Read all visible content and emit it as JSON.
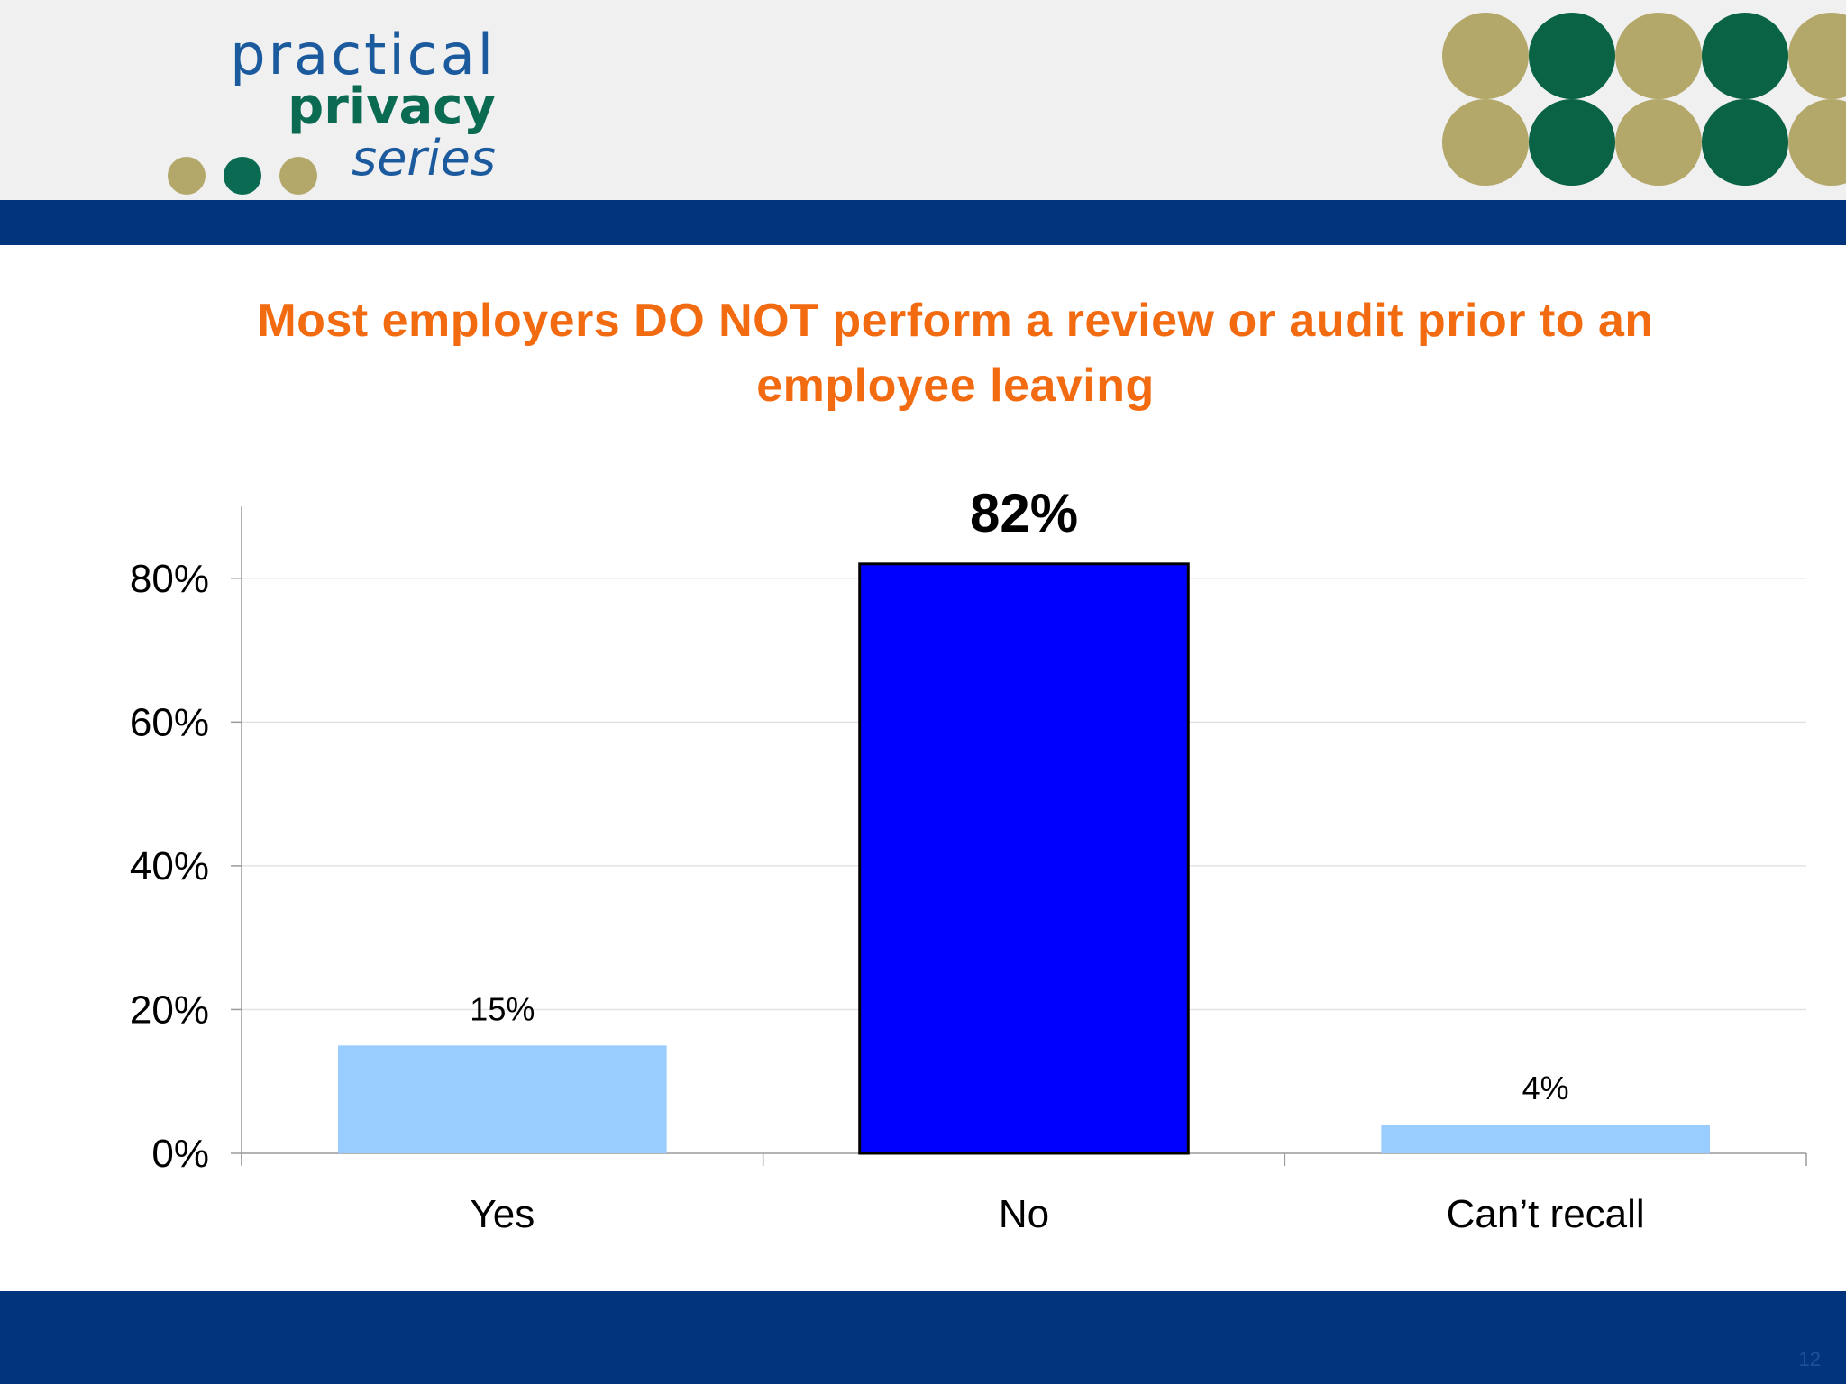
{
  "brand": {
    "line1": "practical",
    "line2": "privacy",
    "line3": "series",
    "dot_colors": [
      "#b3a86a",
      "#0a6b52",
      "#b3a86a"
    ],
    "circle_colors": [
      "#b3a86a",
      "#0a6344",
      "#b3a86a",
      "#0a6344",
      "#b3a86a"
    ]
  },
  "colors": {
    "accent": "#f26b11",
    "band": "#00357e",
    "bar_highlight": "#0000ff",
    "bar_default": "#99ccff"
  },
  "slide": {
    "title": "Most employers DO NOT perform a review or audit prior to an employee leaving",
    "page_number": "12"
  },
  "chart_data": {
    "type": "bar",
    "categories": [
      "Yes",
      "No",
      "Can’t recall"
    ],
    "values": [
      15,
      82,
      4
    ],
    "value_labels": [
      "15%",
      "82%",
      "4%"
    ],
    "highlight_index": 1,
    "ylim": [
      0,
      90
    ],
    "yticks": [
      0,
      20,
      40,
      60,
      80
    ],
    "ytick_labels": [
      "0%",
      "20%",
      "40%",
      "60%",
      "80%"
    ],
    "grid": true,
    "legend": "none",
    "title": "",
    "xlabel": "",
    "ylabel": ""
  }
}
